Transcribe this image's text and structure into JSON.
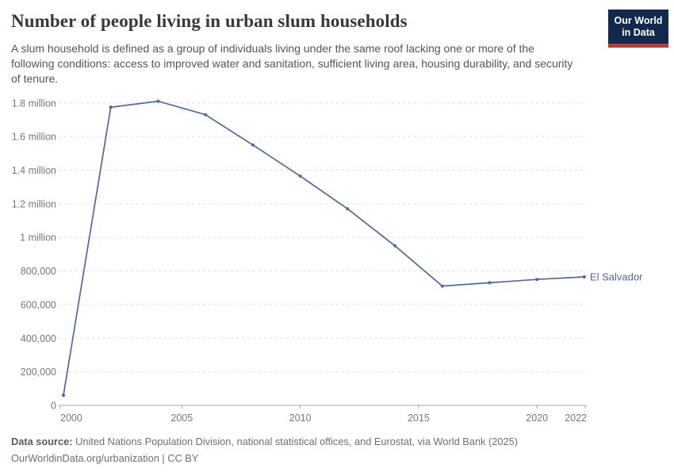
{
  "header": {
    "title": "Number of people living in urban slum households",
    "subtitle": "A slum household is defined as a group of individuals living under the same roof lacking one or more of the following conditions: access to improved water and sanitation, sufficient living area, housing durability, and security of tenure.",
    "logo": {
      "line1": "Our World",
      "line2": "in Data",
      "bg_color": "#12294d",
      "bar_color": "#c9342c"
    }
  },
  "chart_data": {
    "type": "line",
    "title": "Number of people living in urban slum households",
    "xlabel": "",
    "ylabel": "",
    "grid": true,
    "legend_position": "end-of-line",
    "line_color": "#4C6A9C",
    "xlim": [
      2000,
      2022
    ],
    "ylim": [
      0,
      1800000
    ],
    "x": [
      2000,
      2002,
      2004,
      2006,
      2008,
      2010,
      2012,
      2014,
      2016,
      2018,
      2020,
      2022
    ],
    "series": [
      {
        "name": "El Salvador",
        "values": [
          60000,
          1775000,
          1810000,
          1730000,
          1550000,
          1365000,
          1170000,
          950000,
          710000,
          730000,
          750000,
          765000
        ]
      }
    ],
    "y_ticks": [
      {
        "value": 0,
        "label": "0"
      },
      {
        "value": 200000,
        "label": "200,000"
      },
      {
        "value": 400000,
        "label": "400,000"
      },
      {
        "value": 600000,
        "label": "600,000"
      },
      {
        "value": 800000,
        "label": "800,000"
      },
      {
        "value": 1000000,
        "label": "1 million"
      },
      {
        "value": 1200000,
        "label": "1.2 million"
      },
      {
        "value": 1400000,
        "label": "1.4 million"
      },
      {
        "value": 1600000,
        "label": "1.6 million"
      },
      {
        "value": 1800000,
        "label": "1.8 million"
      }
    ],
    "x_ticks": [
      2000,
      2005,
      2010,
      2015,
      2020,
      2022
    ]
  },
  "footer": {
    "data_source_label": "Data source:",
    "data_source_text": "United Nations Population Division, national statistical offices, and Eurostat, via World Bank (2025)",
    "citation": "OurWorldinData.org/urbanization | CC BY"
  }
}
